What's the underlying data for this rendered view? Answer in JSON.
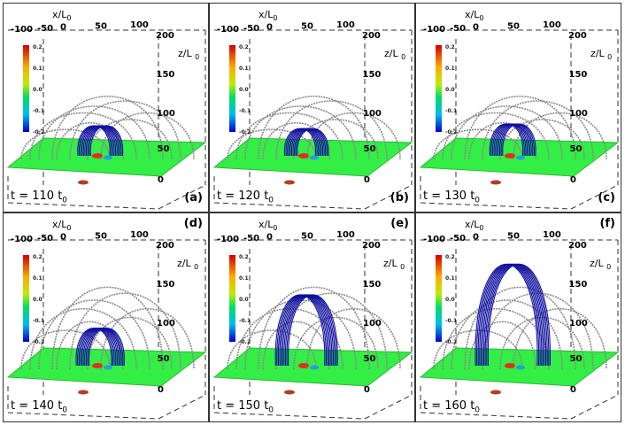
{
  "figure": {
    "colorbar_ticks": [
      "0.2",
      "0.1",
      "0.0",
      "-0.1",
      "-0.2"
    ],
    "x_axis_label": "x/L",
    "x_axis_sub": "0",
    "z_axis_label": "z/L",
    "z_axis_sub": "0",
    "x_ticks": [
      "-100",
      "-50",
      "0",
      "50",
      "100"
    ],
    "z_ticks": [
      "200",
      "150",
      "100",
      "50",
      "0"
    ],
    "colors": {
      "plane": "#33ee44",
      "field_grey": "#8a8a8a",
      "field_blue": "#1010a0",
      "frame": "#333333"
    }
  },
  "panels": [
    {
      "time_label": "t = 110 t",
      "time_sub": "0",
      "panel_label": "(a)",
      "rope_height": 0.18
    },
    {
      "time_label": "t = 120 t",
      "time_sub": "0",
      "panel_label": "(b)",
      "rope_height": 0.15
    },
    {
      "time_label": "t = 130 t",
      "time_sub": "0",
      "panel_label": "(c)",
      "rope_height": 0.2
    },
    {
      "time_label": "t = 140 t",
      "time_sub": "0",
      "panel_label": "(d)",
      "rope_height": 0.26
    },
    {
      "time_label": "t = 150 t",
      "time_sub": "0",
      "panel_label": "(e)",
      "rope_height": 0.62
    },
    {
      "time_label": "t = 160 t",
      "time_sub": "0",
      "panel_label": "(f)",
      "rope_height": 0.95
    }
  ]
}
